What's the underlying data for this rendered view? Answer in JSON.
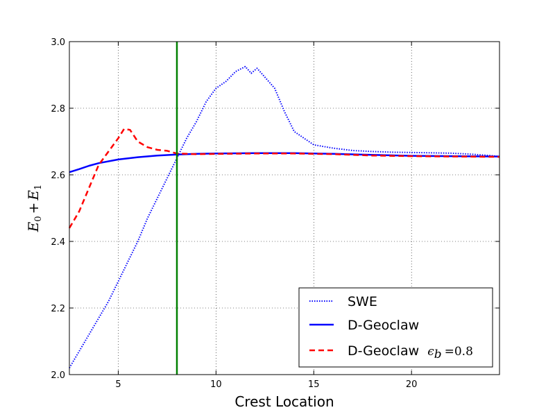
{
  "chart_data": {
    "type": "line",
    "xlabel": "Crest Location",
    "ylabel_parts": {
      "e0": "E",
      "sub0": "0",
      "plus": "+",
      "e1": "E",
      "sub1": "1"
    },
    "xlim": [
      2.5,
      24.5
    ],
    "ylim": [
      2.0,
      3.0
    ],
    "xticks": [
      5,
      10,
      15,
      20
    ],
    "xtick_labels": [
      "5",
      "10",
      "15",
      "20"
    ],
    "yticks": [
      2.0,
      2.2,
      2.4,
      2.6,
      2.8,
      3.0
    ],
    "ytick_labels": [
      "2.0",
      "2.2",
      "2.4",
      "2.6",
      "2.8",
      "3.0"
    ],
    "grid": true,
    "legend_position": "lower-right",
    "vline": {
      "x": 8.0,
      "color": "#008000"
    },
    "series": [
      {
        "name": "SWE",
        "color": "#0000ff",
        "style": "dotted",
        "x": [
          2.5,
          3.0,
          3.5,
          4.0,
          4.5,
          5.0,
          5.5,
          6.0,
          6.5,
          7.0,
          7.5,
          8.0,
          8.5,
          9.0,
          9.5,
          10.0,
          10.5,
          11.0,
          11.5,
          11.8,
          12.1,
          12.4,
          13.0,
          13.5,
          14.0,
          14.5,
          15.0,
          16.0,
          17.0,
          18.0,
          19.0,
          20.0,
          21.0,
          22.0,
          23.0,
          24.0,
          24.5
        ],
        "y": [
          2.02,
          2.07,
          2.12,
          2.17,
          2.22,
          2.28,
          2.34,
          2.4,
          2.47,
          2.53,
          2.59,
          2.65,
          2.71,
          2.76,
          2.82,
          2.86,
          2.88,
          2.91,
          2.925,
          2.905,
          2.92,
          2.9,
          2.86,
          2.79,
          2.73,
          2.71,
          2.69,
          2.68,
          2.673,
          2.67,
          2.668,
          2.667,
          2.666,
          2.665,
          2.662,
          2.658,
          2.655
        ]
      },
      {
        "name": "D-Geoclaw",
        "color": "#0000ff",
        "style": "solid",
        "x": [
          2.5,
          3.0,
          3.5,
          4.0,
          5.0,
          6.0,
          7.0,
          8.0,
          9.0,
          10.0,
          12.0,
          14.0,
          16.0,
          18.0,
          20.0,
          22.0,
          24.5
        ],
        "y": [
          2.608,
          2.617,
          2.627,
          2.635,
          2.646,
          2.653,
          2.658,
          2.661,
          2.663,
          2.664,
          2.665,
          2.665,
          2.663,
          2.66,
          2.657,
          2.656,
          2.655
        ]
      },
      {
        "name": "D-Geoclaw",
        "name_math": "ϵ",
        "name_math_sub": "b",
        "name_math_tail": "=0.8",
        "color": "#ff0000",
        "style": "dashed",
        "x": [
          2.5,
          3.0,
          3.5,
          4.0,
          4.5,
          5.0,
          5.3,
          5.6,
          6.0,
          6.5,
          7.0,
          7.5,
          8.0,
          9.0,
          10.0,
          12.0,
          14.0,
          16.0,
          18.0,
          20.0,
          22.0,
          24.5
        ],
        "y": [
          2.44,
          2.49,
          2.56,
          2.63,
          2.67,
          2.71,
          2.738,
          2.735,
          2.7,
          2.683,
          2.675,
          2.672,
          2.664,
          2.662,
          2.663,
          2.664,
          2.664,
          2.662,
          2.658,
          2.656,
          2.655,
          2.654
        ]
      }
    ]
  }
}
